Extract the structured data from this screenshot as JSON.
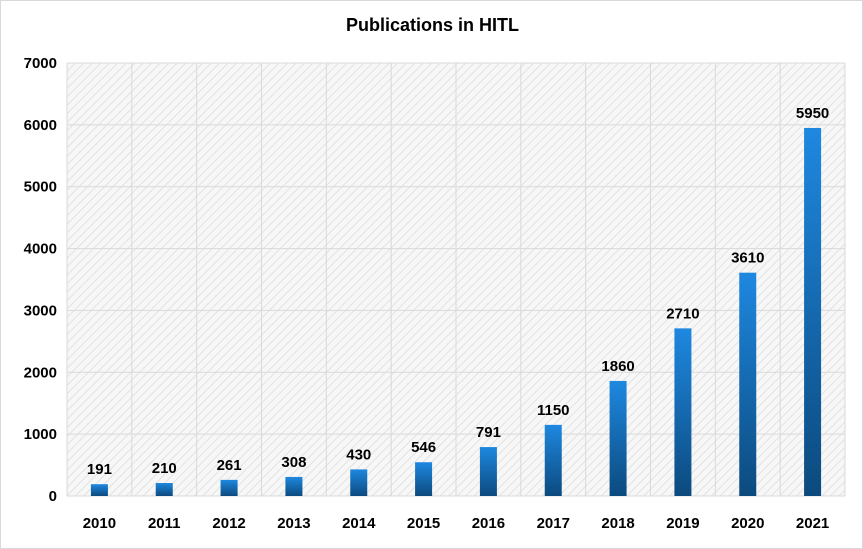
{
  "chart_data": {
    "type": "bar",
    "title": "Publications in HITL",
    "xlabel": "",
    "ylabel": "",
    "categories": [
      "2010",
      "2011",
      "2012",
      "2013",
      "2014",
      "2015",
      "2016",
      "2017",
      "2018",
      "2019",
      "2020",
      "2021"
    ],
    "values": [
      191,
      210,
      261,
      308,
      430,
      546,
      791,
      1150,
      1860,
      2710,
      3610,
      5950
    ],
    "ylim": [
      0,
      7000
    ],
    "yticks": [
      0,
      1000,
      2000,
      3000,
      4000,
      5000,
      6000,
      7000
    ],
    "grid": true,
    "legend": "none",
    "colors": {
      "bar_top": "#1e88e0",
      "bar_bottom": "#0c4a7e",
      "grid": "#d9d9d9",
      "plot_bg": "#f2f2f2"
    }
  }
}
